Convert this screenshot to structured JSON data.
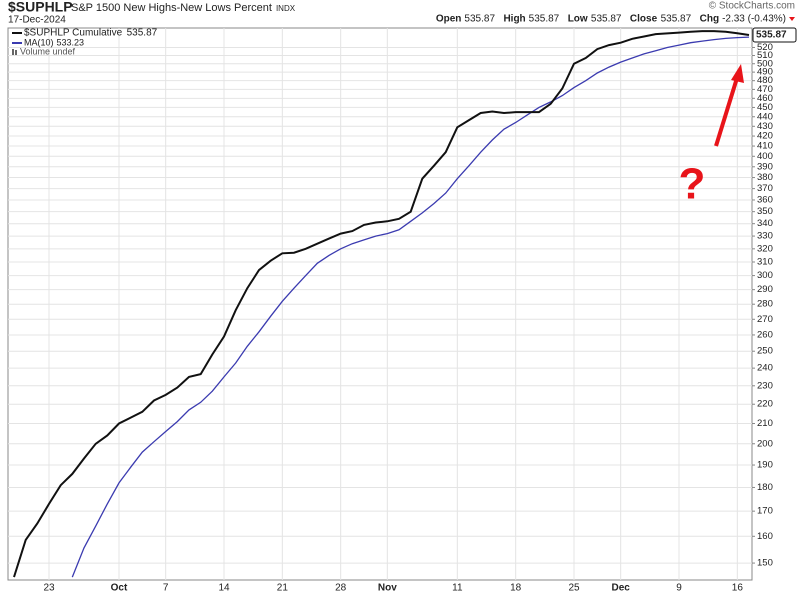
{
  "chart_data": {
    "type": "line",
    "title": "$SUPHLP",
    "subtitle": "S&P 1500 New Highs-New Lows Percent",
    "exchange": "INDX",
    "date": "17-Dec-2024",
    "watermark": "© StockCharts.com",
    "stats": [
      {
        "name": "Open",
        "value": 535.87
      },
      {
        "name": "High",
        "value": 535.87
      },
      {
        "name": "Low",
        "value": 535.87
      },
      {
        "name": "Close",
        "value": 535.87
      },
      {
        "name": "Chg",
        "value": -2.33,
        "value_label": "-2.33 (-0.43%)"
      }
    ],
    "volume_note": "Volume undef",
    "annotation": "?",
    "log_scale": true,
    "grid": true,
    "ylim": [
      144,
      545
    ],
    "yticks": [
      150,
      160,
      170,
      180,
      190,
      200,
      210,
      220,
      230,
      240,
      250,
      260,
      270,
      280,
      290,
      300,
      310,
      320,
      330,
      340,
      350,
      360,
      370,
      380,
      390,
      400,
      410,
      420,
      430,
      440,
      450,
      460,
      470,
      480,
      490,
      500,
      510,
      520
    ],
    "categories": [
      null,
      null,
      null,
      "23",
      null,
      null,
      null,
      null,
      null,
      "Oct",
      null,
      null,
      null,
      "7",
      null,
      null,
      null,
      null,
      "14",
      null,
      null,
      null,
      null,
      "21",
      null,
      null,
      null,
      null,
      "28",
      null,
      null,
      null,
      "Nov",
      null,
      null,
      null,
      null,
      null,
      "11",
      null,
      null,
      null,
      null,
      "18",
      null,
      null,
      null,
      null,
      "25",
      null,
      null,
      null,
      "Dec",
      null,
      null,
      null,
      null,
      "9",
      null,
      null,
      null,
      null,
      "16",
      null
    ],
    "series": [
      {
        "name": "$SUPHLP Cumulative",
        "color": "#111111",
        "values": [
          145,
          158.6,
          165,
          173,
          181,
          186,
          193,
          200,
          204,
          210,
          213,
          216,
          222,
          225,
          229,
          235,
          236.6,
          248,
          259,
          276,
          291,
          304,
          311,
          316.6,
          317,
          320,
          324,
          328,
          332,
          334,
          339,
          341,
          342,
          344,
          350,
          379,
          391,
          404,
          429,
          436.5,
          444,
          445.6,
          444,
          445,
          445,
          445,
          454,
          471,
          500,
          507,
          518,
          523,
          526,
          531,
          534,
          537,
          538,
          539,
          540,
          541,
          541,
          540,
          538.2,
          535.87
        ]
      },
      {
        "name": "MA(10)",
        "color": "#3b3bb0",
        "values": [
          null,
          null,
          null,
          null,
          null,
          145,
          155.6,
          164,
          173,
          182,
          189,
          196,
          201,
          206,
          211,
          217,
          221,
          227,
          235,
          243,
          253,
          262,
          272,
          282,
          291,
          300,
          309,
          315,
          320,
          324,
          327,
          330,
          332,
          335,
          342,
          349,
          357,
          366,
          379,
          391,
          404,
          416,
          427,
          434,
          442,
          450,
          456,
          463,
          472,
          480,
          489,
          496,
          502,
          507,
          512,
          516,
          520,
          523,
          526,
          528,
          530,
          531.5,
          532.5,
          533.23
        ]
      }
    ]
  }
}
